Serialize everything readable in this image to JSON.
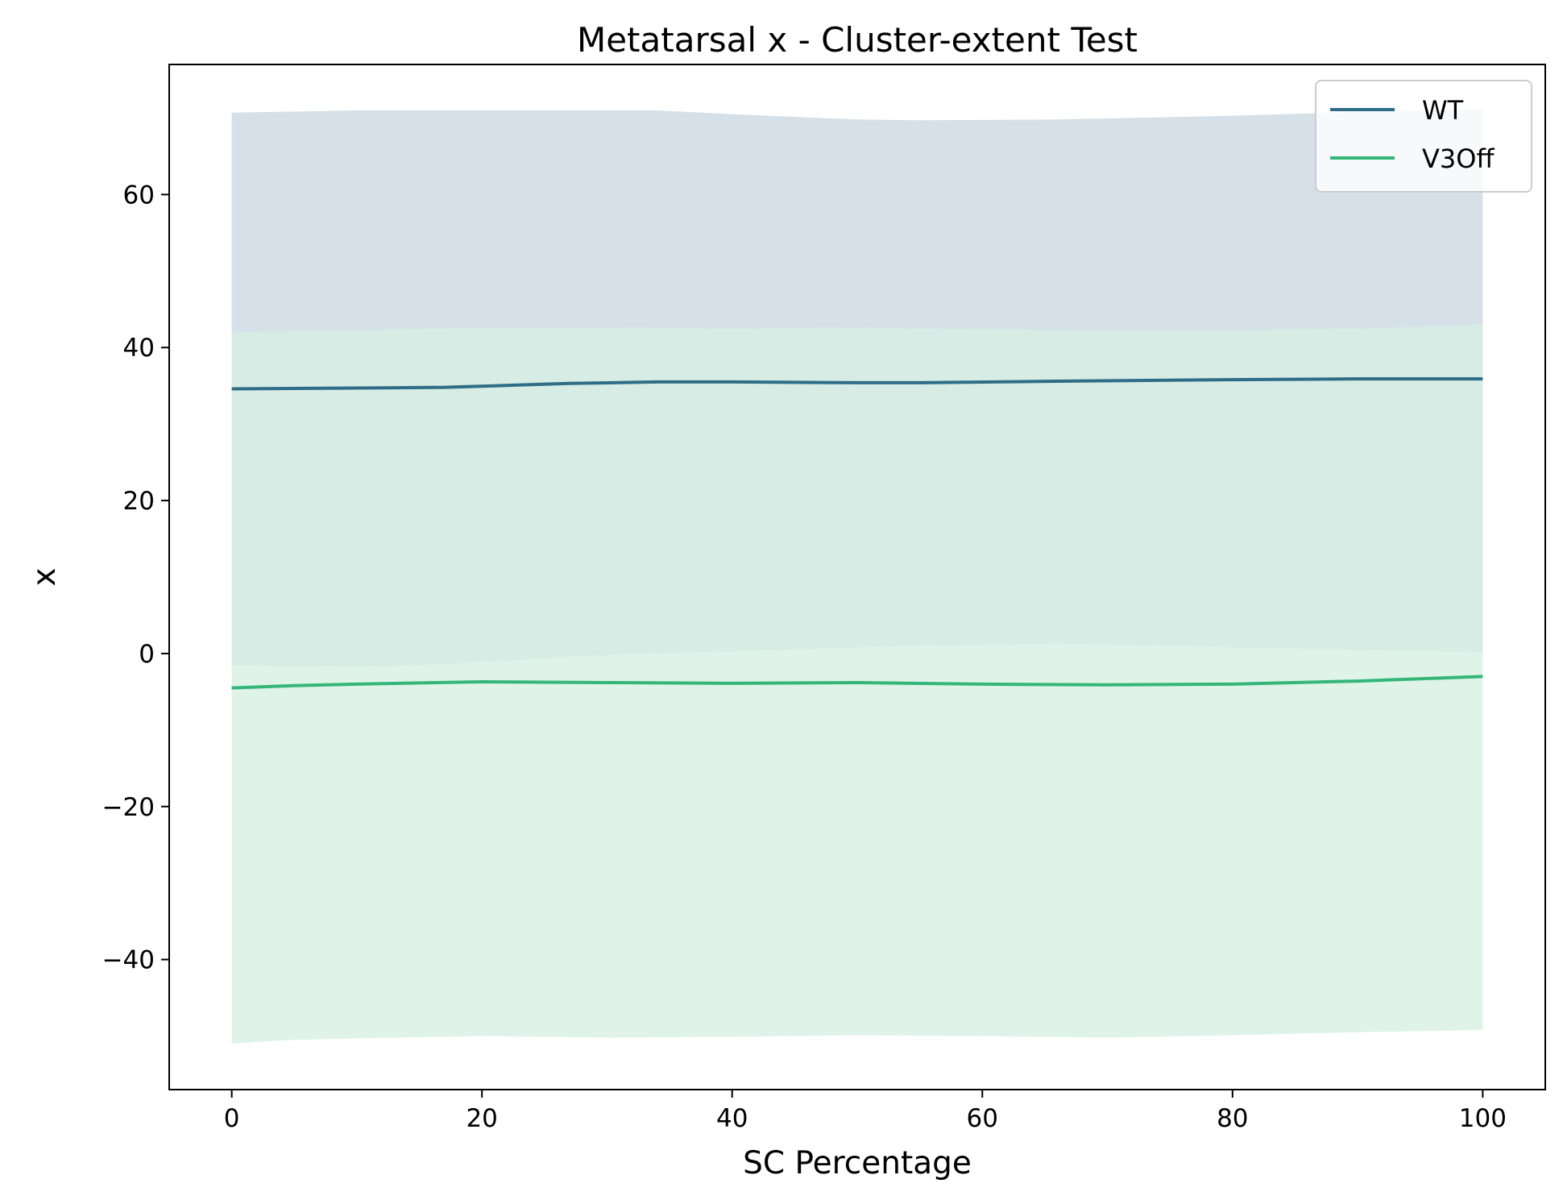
{
  "chart_data": {
    "type": "line",
    "title": "Metatarsal x - Cluster-extent Test",
    "xlabel": "SC Percentage",
    "ylabel": "x",
    "xlim": [
      -5,
      105
    ],
    "ylim": [
      -57,
      77
    ],
    "xticks": [
      0,
      20,
      40,
      60,
      80,
      100
    ],
    "yticks": [
      -40,
      -20,
      0,
      20,
      40,
      60
    ],
    "grid": false,
    "legend_position": "top-right",
    "series": [
      {
        "name": "WT",
        "color": "#2f6d87",
        "band_color": "#d6e0e8",
        "x": [
          0,
          10,
          17,
          21,
          27,
          34,
          40,
          50,
          55,
          66,
          80,
          90,
          100
        ],
        "y": [
          34.6,
          34.7,
          34.8,
          35.0,
          35.3,
          35.5,
          35.5,
          35.4,
          35.4,
          35.6,
          35.8,
          35.9,
          35.9
        ],
        "upper": [
          70.7,
          71.0,
          71.0,
          71.0,
          71.0,
          71.0,
          70.5,
          69.8,
          69.7,
          69.8,
          70.3,
          70.8,
          71.2
        ],
        "lower": [
          -1.5,
          -1.7,
          -1.4,
          -1.0,
          -0.4,
          0.0,
          0.3,
          0.8,
          1.0,
          1.3,
          0.8,
          0.5,
          0.2
        ]
      },
      {
        "name": "V3Off",
        "color": "#34b679",
        "band_color": "#d6efe3",
        "x": [
          0,
          5,
          10,
          20,
          30,
          40,
          50,
          60,
          70,
          80,
          90,
          100
        ],
        "y": [
          -4.5,
          -4.2,
          -4.0,
          -3.7,
          -3.8,
          -3.9,
          -3.8,
          -4.0,
          -4.1,
          -4.0,
          -3.6,
          -3.0
        ],
        "upper": [
          42.0,
          42.2,
          42.3,
          42.6,
          42.6,
          42.5,
          42.6,
          42.4,
          42.3,
          42.3,
          42.5,
          43.0
        ],
        "lower": [
          -51.0,
          -50.5,
          -50.3,
          -50.0,
          -50.2,
          -50.1,
          -49.9,
          -50.0,
          -50.2,
          -49.9,
          -49.5,
          -49.2
        ]
      }
    ]
  }
}
